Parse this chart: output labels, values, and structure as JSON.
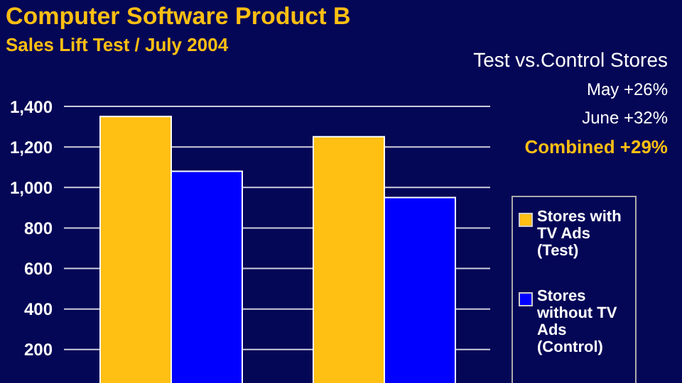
{
  "chart_data": {
    "type": "bar",
    "title": "Computer Software Product B",
    "subtitle": "Sales Lift Test / July 2004",
    "categories": [
      null,
      null
    ],
    "series": [
      {
        "name": "Stores with TV Ads (Test)",
        "color": "#ffbf13",
        "values": [
          1350,
          1250
        ]
      },
      {
        "name": "Stores without TV Ads (Control)",
        "color": "#0000ff",
        "values": [
          1080,
          950
        ]
      }
    ],
    "ylim": [
      0,
      1400
    ],
    "yticks": [
      200,
      400,
      600,
      800,
      {
        "value": 1000,
        "label": "1,000"
      },
      {
        "value": 1200,
        "label": "1,200"
      },
      {
        "value": 1400,
        "label": "1,400"
      }
    ],
    "grid": "y",
    "legend": "right",
    "annotations": [
      "Test vs.Control Stores",
      "May +26%",
      "June +32%",
      "Combined +29%"
    ]
  }
}
